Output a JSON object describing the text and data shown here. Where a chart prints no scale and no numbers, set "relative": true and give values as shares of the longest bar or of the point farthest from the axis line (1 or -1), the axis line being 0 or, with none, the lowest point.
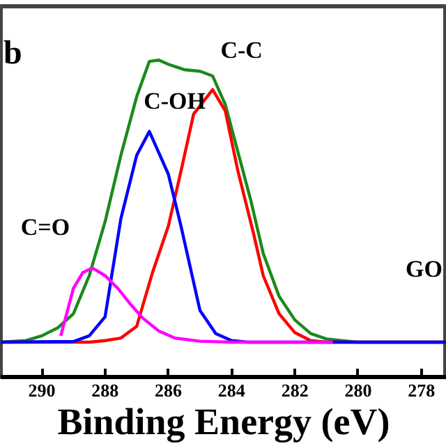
{
  "chart_data": {
    "type": "line",
    "relative": true,
    "xlabel": "Binding Energy (eV)",
    "xlim": [
      291.3,
      277.2
    ],
    "xticks": [
      290,
      288,
      286,
      284,
      282,
      280,
      278
    ],
    "grid": false,
    "marker": "none",
    "line_style": "solid",
    "series": [
      {
        "color": "#1a8a1a",
        "x": [
          291.3,
          290.5,
          290.0,
          289.5,
          289.0,
          288.5,
          288.0,
          287.5,
          287.0,
          286.6,
          286.3,
          286.0,
          285.5,
          285.0,
          284.6,
          284.2,
          283.8,
          283.4,
          283.0,
          282.5,
          282.0,
          281.5,
          281.0,
          280.0,
          277.2
        ],
        "values": [
          0.11,
          0.115,
          0.13,
          0.155,
          0.2,
          0.32,
          0.49,
          0.7,
          0.885,
          0.996,
          1.0,
          0.987,
          0.97,
          0.965,
          0.95,
          0.86,
          0.71,
          0.56,
          0.39,
          0.255,
          0.18,
          0.137,
          0.12,
          0.11,
          0.11
        ]
      },
      {
        "color": "#ff0000",
        "x": [
          291.3,
          288.5,
          288.0,
          287.5,
          287.0,
          286.5,
          286.0,
          285.6,
          285.2,
          284.6,
          284.2,
          283.8,
          283.3,
          283.0,
          282.5,
          282.0,
          281.5,
          281.0,
          277.2
        ],
        "values": [
          0.11,
          0.11,
          0.115,
          0.123,
          0.16,
          0.33,
          0.476,
          0.65,
          0.83,
          0.907,
          0.84,
          0.65,
          0.45,
          0.32,
          0.2,
          0.14,
          0.115,
          0.11,
          0.11
        ]
      },
      {
        "color": "#0000ff",
        "x": [
          291.3,
          289.0,
          288.5,
          288.0,
          287.5,
          287.0,
          286.6,
          286.0,
          285.6,
          285.0,
          284.5,
          284.0,
          283.5,
          277.2
        ],
        "values": [
          0.11,
          0.112,
          0.13,
          0.19,
          0.5,
          0.7,
          0.775,
          0.64,
          0.476,
          0.21,
          0.137,
          0.115,
          0.11,
          0.11
        ]
      },
      {
        "color": "#ff00ff",
        "x": [
          289.4,
          289.0,
          288.7,
          288.4,
          288.0,
          287.6,
          287.2,
          286.8,
          286.3,
          285.8,
          285.0,
          284.0,
          280.8
        ],
        "values": [
          0.13,
          0.28,
          0.33,
          0.344,
          0.32,
          0.28,
          0.23,
          0.185,
          0.145,
          0.123,
          0.113,
          0.11,
          0.11
        ]
      }
    ],
    "annotations": [
      "b",
      "C-C",
      "C-OH",
      "C=O",
      "GO"
    ]
  }
}
